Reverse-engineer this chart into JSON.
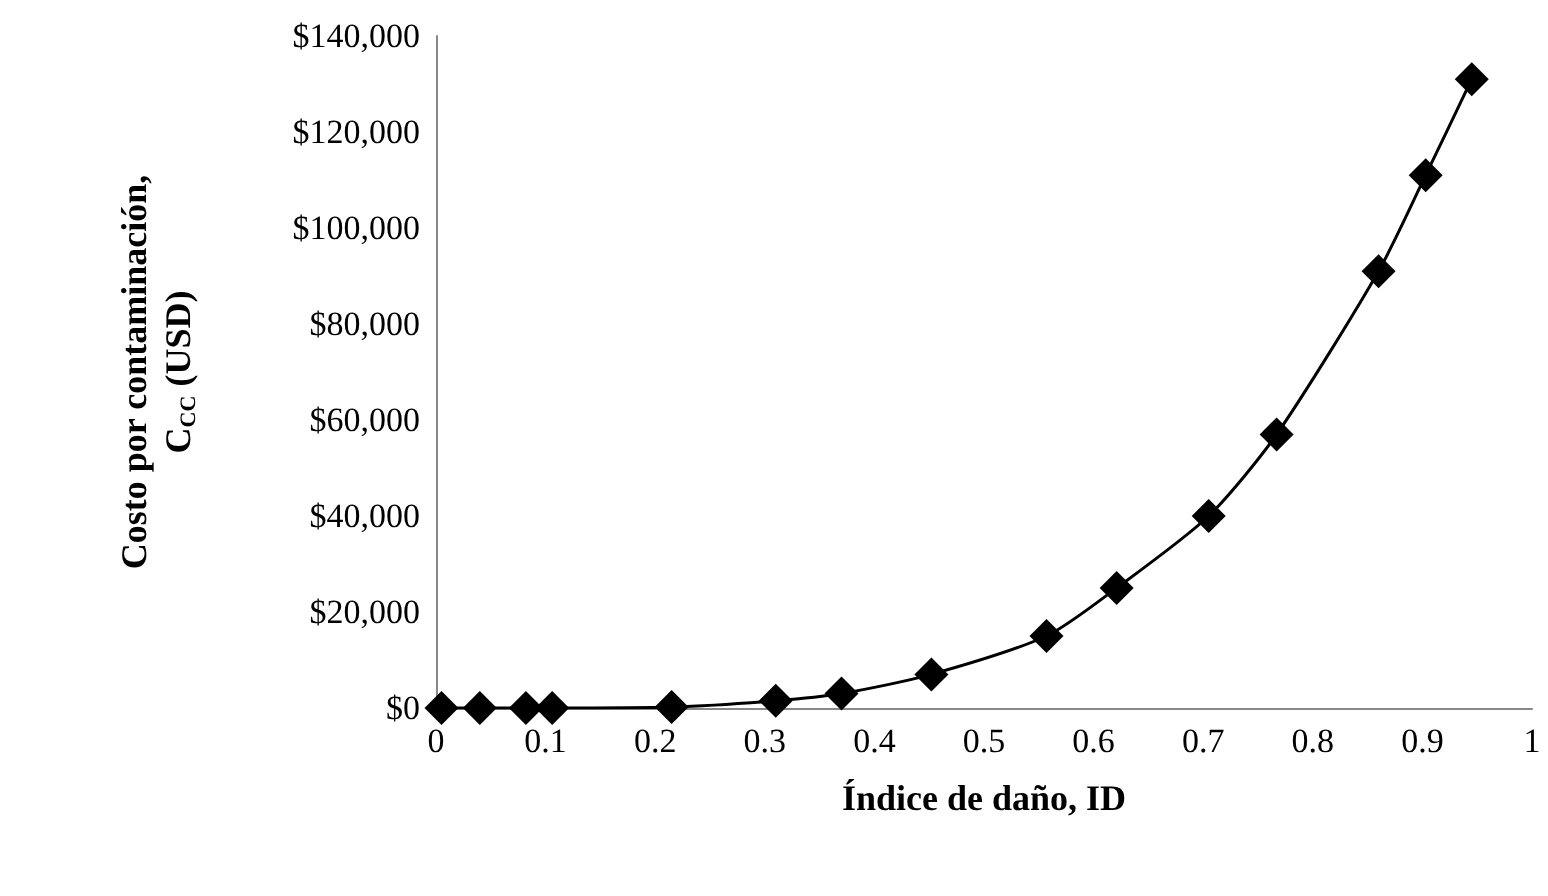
{
  "chart_data": {
    "type": "line",
    "xlabel": "Índice de daño, ID",
    "ylabel": "Costo por contaminación, C$_{CC}$ (USD)",
    "x": [
      0.005,
      0.04,
      0.082,
      0.106,
      0.215,
      0.31,
      0.37,
      0.452,
      0.557,
      0.621,
      0.705,
      0.767,
      0.86,
      0.903,
      0.945
    ],
    "series": [
      {
        "color": "#000000",
        "values": [
          0,
          0,
          0,
          0,
          200,
          1500,
          3000,
          7000,
          15000,
          25000,
          40000,
          57000,
          91000,
          111000,
          131000
        ]
      }
    ],
    "xlim": [
      0,
      1
    ],
    "xticks": [
      0,
      0.1,
      0.2,
      0.3,
      0.4,
      0.5,
      0.6,
      0.7,
      0.8,
      0.9,
      1
    ],
    "ylim": [
      0,
      140000
    ],
    "yticks": [
      {
        "value": 0,
        "label": "$0"
      },
      {
        "value": 20000,
        "label": "$20,000"
      },
      {
        "value": 40000,
        "label": "$40,000"
      },
      {
        "value": 60000,
        "label": "$60,000"
      },
      {
        "value": 80000,
        "label": "$80,000"
      },
      {
        "value": 100000,
        "label": "$100,000"
      },
      {
        "value": 120000,
        "label": "$120,000"
      },
      {
        "value": 140000,
        "label": "$140,000"
      }
    ],
    "grid": false,
    "marker": "diamond",
    "line_style": "solid"
  }
}
